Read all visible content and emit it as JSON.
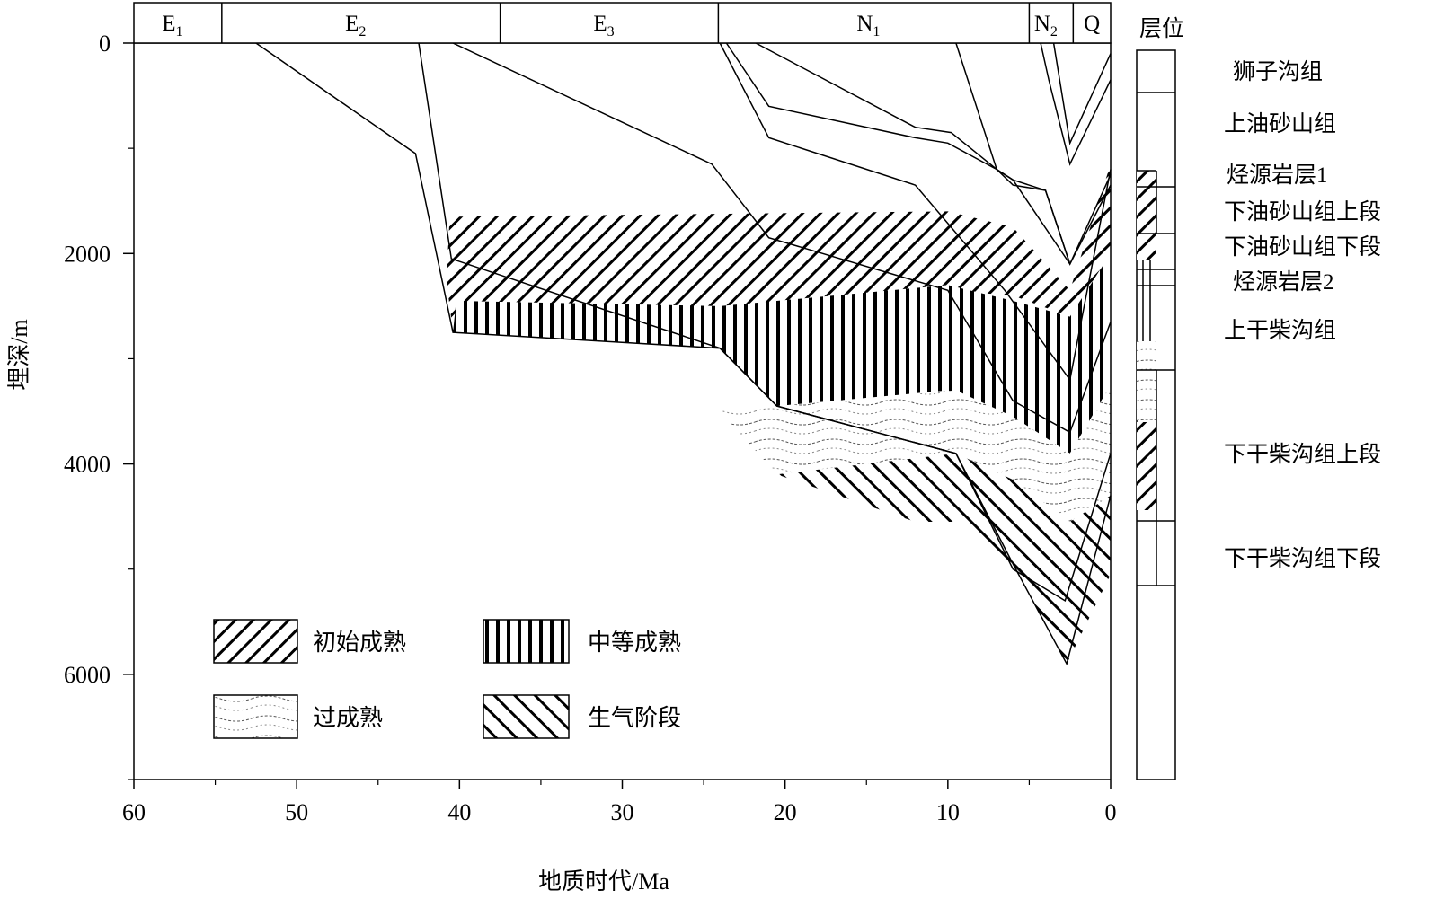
{
  "chart_data": {
    "type": "area",
    "xlabel": "地质时代/Ma",
    "ylabel": "埋深/m",
    "xlim": [
      60,
      0
    ],
    "ylim": [
      0,
      7000
    ],
    "x_ticks": [
      "60",
      "50",
      "40",
      "30",
      "20",
      "10",
      "0"
    ],
    "y_ticks": [
      "0",
      "2000",
      "4000",
      "6000"
    ],
    "periods": [
      {
        "label": "E",
        "sub": "1",
        "start": 60,
        "end": 54.6
      },
      {
        "label": "E",
        "sub": "2",
        "start": 54.6,
        "end": 37.5
      },
      {
        "label": "E",
        "sub": "3",
        "start": 37.5,
        "end": 24.1
      },
      {
        "label": "N",
        "sub": "1",
        "start": 24.1,
        "end": 5.0
      },
      {
        "label": "N",
        "sub": "2",
        "start": 5.0,
        "end": 2.3
      },
      {
        "label": "Q",
        "sub": "",
        "start": 2.3,
        "end": 0
      }
    ],
    "burial_curves": [
      [
        [
          52.5,
          0
        ],
        [
          42.7,
          1050
        ],
        [
          40.4,
          2750
        ],
        [
          24,
          2900
        ],
        [
          20.5,
          3450
        ],
        [
          9.5,
          3900
        ],
        [
          6,
          4950
        ],
        [
          2.7,
          5900
        ],
        [
          0,
          4300
        ]
      ],
      [
        [
          42.5,
          0
        ],
        [
          40.5,
          2050
        ],
        [
          24,
          2900
        ],
        [
          20.5,
          3450
        ],
        [
          9.5,
          3900
        ],
        [
          6,
          5000
        ],
        [
          2.8,
          5300
        ],
        [
          0,
          3900
        ]
      ],
      [
        [
          40.4,
          0
        ],
        [
          24.5,
          1150
        ],
        [
          21,
          1850
        ],
        [
          10,
          2350
        ],
        [
          6,
          3400
        ],
        [
          2.5,
          3700
        ],
        [
          0,
          2650
        ]
      ],
      [
        [
          24,
          0
        ],
        [
          21,
          900
        ],
        [
          12,
          1350
        ],
        [
          6.5,
          2350
        ],
        [
          2.5,
          3200
        ],
        [
          0,
          1200
        ]
      ],
      [
        [
          23.6,
          0
        ],
        [
          21,
          600
        ],
        [
          12,
          900
        ],
        [
          10,
          950
        ],
        [
          7,
          1200
        ],
        [
          6,
          1300
        ],
        [
          2.5,
          2100
        ],
        [
          0,
          1250
        ]
      ],
      [
        [
          21.8,
          0
        ],
        [
          12,
          800
        ],
        [
          9.8,
          850
        ],
        [
          7,
          1200
        ],
        [
          6,
          1350
        ],
        [
          4,
          1400
        ],
        [
          2.5,
          2100
        ]
      ],
      [
        [
          9.5,
          0
        ],
        [
          7,
          1200
        ],
        [
          6,
          1300
        ],
        [
          4,
          1400
        ],
        [
          2.5,
          2100
        ],
        [
          0,
          1350
        ]
      ],
      [
        [
          4.3,
          0
        ],
        [
          3.8,
          350
        ],
        [
          2.5,
          1150
        ],
        [
          0,
          350
        ]
      ],
      [
        [
          3.5,
          0
        ],
        [
          2.5,
          950
        ],
        [
          0,
          100
        ]
      ]
    ],
    "zones": [
      {
        "name": "初始成熟",
        "pattern": "initial"
      },
      {
        "name": "中等成熟",
        "pattern": "medium"
      },
      {
        "name": "过成熟",
        "pattern": "over"
      },
      {
        "name": "生气阶段",
        "pattern": "gas"
      }
    ],
    "stratigraphy": {
      "title": "层位",
      "units": [
        "狮子沟组",
        "上油砂山组",
        "烃源岩层1",
        "下油砂山组上段",
        "下油砂山组下段",
        "烃源岩层2",
        "上干柴沟组",
        "下干柴沟组上段",
        "下干柴沟组下段"
      ]
    },
    "grid": false,
    "legend_position": "bottom-left"
  }
}
